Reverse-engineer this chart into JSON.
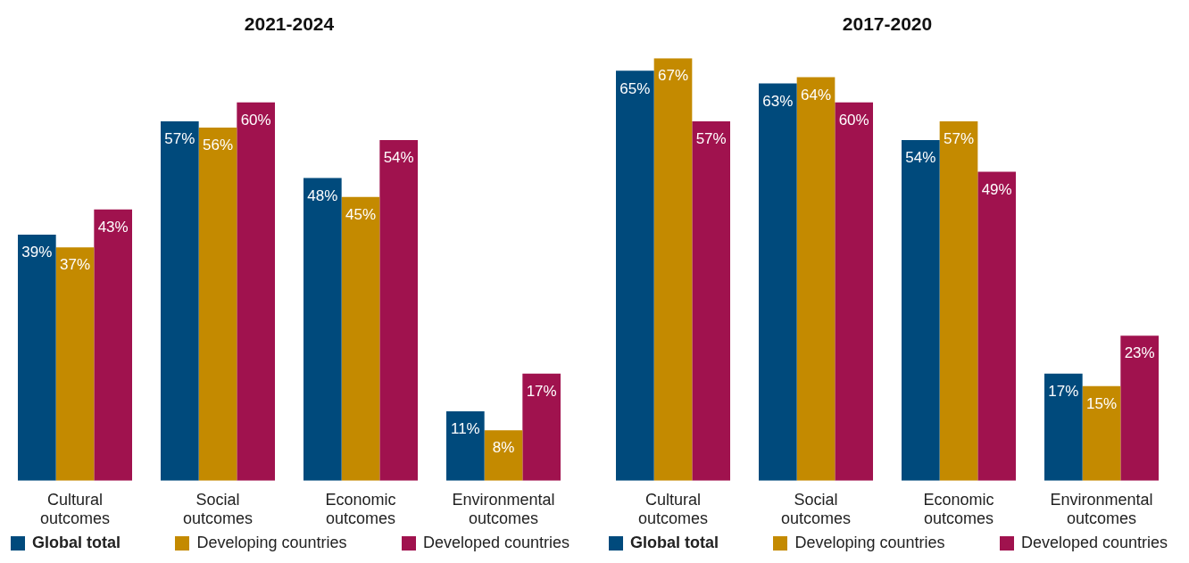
{
  "chart_data": [
    {
      "type": "bar",
      "title": "2021-2024",
      "categories": [
        "Cultural outcomes",
        "Social outcomes",
        "Economic outcomes",
        "Environmental outcomes"
      ],
      "series": [
        {
          "name": "Global total",
          "color": "#004a7c",
          "values": [
            39,
            57,
            48,
            11
          ],
          "value_labels": [
            "39%",
            "57%",
            "48%",
            "11%"
          ]
        },
        {
          "name": "Developing countries",
          "color": "#c48a00",
          "values": [
            37,
            56,
            45,
            8
          ],
          "value_labels": [
            "37%",
            "56%",
            "45%",
            "8%"
          ]
        },
        {
          "name": "Developed countries",
          "color": "#a0124e",
          "values": [
            43,
            60,
            54,
            17
          ],
          "value_labels": [
            "43%",
            "60%",
            "54%",
            "17%"
          ]
        }
      ],
      "legend": "bottom"
    },
    {
      "type": "bar",
      "title": "2017-2020",
      "categories": [
        "Cultural outcomes",
        "Social outcomes",
        "Economic outcomes",
        "Environmental outcomes"
      ],
      "series": [
        {
          "name": "Global total",
          "color": "#004a7c",
          "values": [
            65,
            63,
            54,
            17
          ],
          "value_labels": [
            "65%",
            "63%",
            "54%",
            "17%"
          ]
        },
        {
          "name": "Developing countries",
          "color": "#c48a00",
          "values": [
            67,
            64,
            57,
            15
          ],
          "value_labels": [
            "67%",
            "64%",
            "57%",
            "15%"
          ]
        },
        {
          "name": "Developed countries",
          "color": "#a0124e",
          "values": [
            57,
            60,
            49,
            23
          ],
          "value_labels": [
            "57%",
            "60%",
            "49%",
            "23%"
          ]
        }
      ],
      "legend": "bottom"
    }
  ]
}
